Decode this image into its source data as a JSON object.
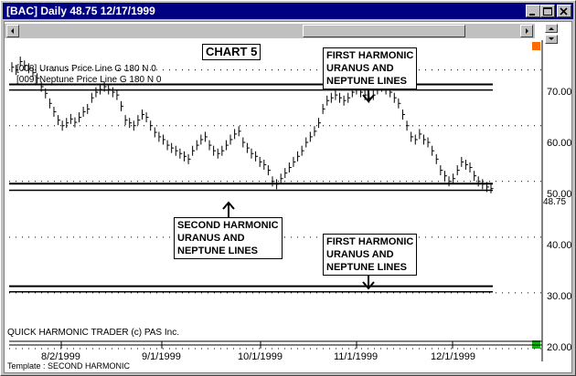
{
  "window": {
    "title": "[BAC] Daily 48.75 12/17/1999"
  },
  "chart": {
    "heading": "CHART 5",
    "legend": [
      "[008] Uranus Price Line G 180 N 0",
      "[009] Neptune Price Line G 180 N 0"
    ],
    "annotations": {
      "top_right": [
        "FIRST HARMONIC",
        "URANUS AND",
        "NEPTUNE LINES"
      ],
      "middle": [
        "SECOND HARMONIC",
        "URANUS AND",
        "NEPTUNE LINES"
      ],
      "bottom_right": [
        "FIRST HARMONIC",
        "URANUS AND",
        "NEPTUNE LINES"
      ]
    },
    "copyright": "QUICK HARMONIC TRADER (c) PAS Inc.",
    "template": "Template : SECOND HARMONIC",
    "last_price_label": "48.75",
    "colors": {
      "price_marker": "#ff6a00",
      "bottom_marker": "#00c000",
      "title_bar": "#000080"
    }
  },
  "chart_data": {
    "type": "bar",
    "y_ticks": [
      "70.00",
      "60.00",
      "50.00",
      "40.00",
      "30.00",
      "20.00"
    ],
    "x_ticks": [
      "8/2/1999",
      "9/1/1999",
      "10/1/1999",
      "11/1/1999",
      "12/1/1999"
    ],
    "ylim": [
      20,
      76
    ],
    "grid": true,
    "horizontal_lines": [
      67.4,
      66.4,
      49.6,
      48.4,
      31.2,
      30.2
    ],
    "close": [
      70.5,
      70,
      71.5,
      70.8,
      70.3,
      69.5,
      68.5,
      67,
      65.8,
      64,
      62.5,
      61,
      60,
      60.5,
      61.2,
      60.6,
      61.5,
      62.5,
      63,
      65,
      66,
      66.5,
      67,
      66.5,
      66,
      65.5,
      63.5,
      61,
      60.5,
      60,
      61,
      62,
      61.5,
      60,
      58.8,
      58,
      57.5,
      56.5,
      56,
      55.5,
      55,
      54.5,
      54,
      55.5,
      56.5,
      57.5,
      58,
      56.5,
      55.5,
      55,
      55.5,
      56.5,
      57.5,
      58.5,
      59,
      57,
      56,
      55,
      54.5,
      53.5,
      53,
      52,
      50,
      49.5,
      50.5,
      51.5,
      52.5,
      53.5,
      54.5,
      55.5,
      57,
      58,
      59,
      60.5,
      63,
      64.5,
      65,
      65.5,
      65,
      64.5,
      65,
      66,
      66.5,
      66,
      65.5,
      65,
      65.5,
      66.5,
      67,
      66.5,
      66,
      65,
      64,
      62,
      60,
      58,
      57.5,
      58.5,
      57.5,
      57,
      55.5,
      54,
      52,
      51,
      50,
      50.5,
      52,
      53.5,
      53,
      52.5,
      51,
      50,
      49.5,
      49,
      48.75
    ]
  }
}
